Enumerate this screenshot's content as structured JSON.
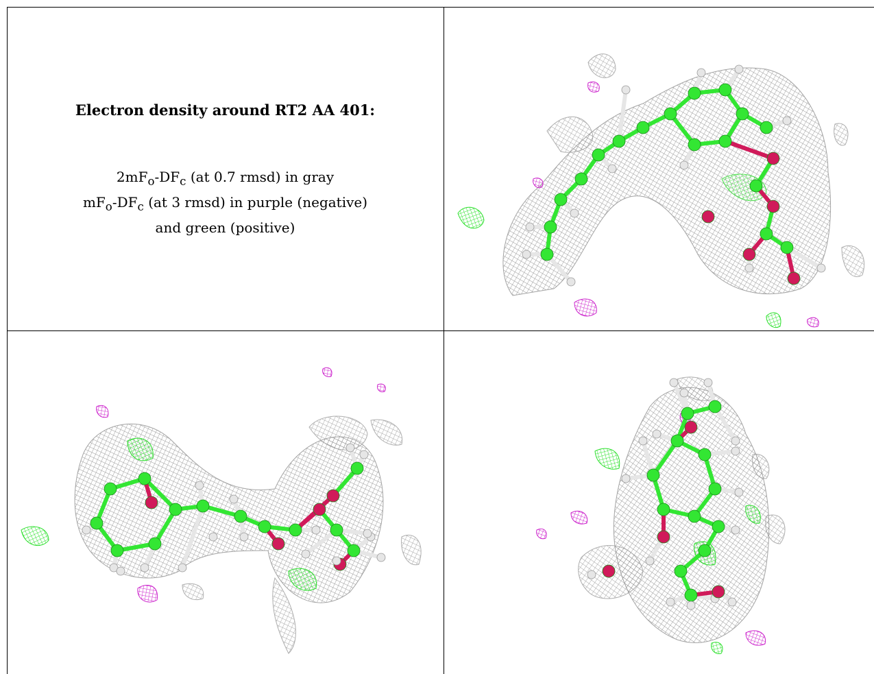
{
  "title": "Electron density around RT2 AA 401:",
  "legend_lines": [
    {
      "prefix": "2mF",
      "sub1": "o",
      "mid": "-DF",
      "sub2": "c",
      "suffix": " (at 0.7 rmsd) in gray"
    },
    {
      "prefix": "mF",
      "sub1": "o",
      "mid": "-DF",
      "sub2": "c",
      "suffix": " (at 3 rmsd) in purple (negative)"
    },
    {
      "prefix": "",
      "sub1": "",
      "mid": "",
      "sub2": "",
      "suffix": "and green (positive)"
    }
  ],
  "colors": {
    "carbon": "#33e633",
    "oxygen": "#d01a5a",
    "hydrogen": "#e6e6e6",
    "mesh_gray": "#8a8a8a",
    "mesh_positive": "#2ae02a",
    "mesh_negative": "#cc22cc"
  },
  "panels": [
    {
      "name": "view-top-right",
      "atoms": 34
    },
    {
      "name": "view-bottom-left",
      "atoms": 35
    },
    {
      "name": "view-bottom-right",
      "atoms": 32
    }
  ]
}
